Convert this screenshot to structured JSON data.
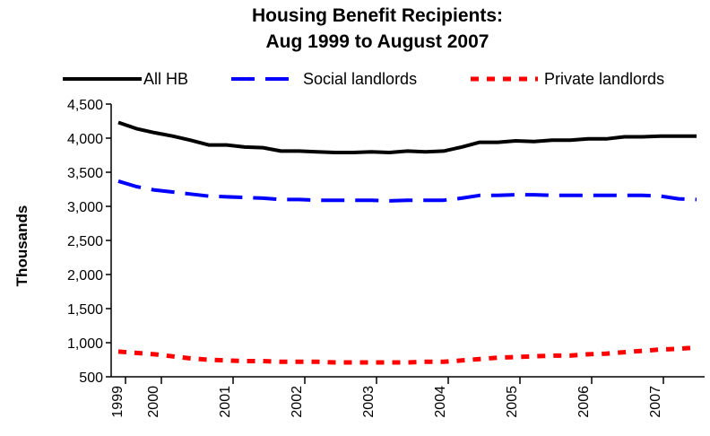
{
  "chart_data": {
    "type": "line",
    "title": [
      "Housing Benefit Recipients:",
      "Aug 1999 to August 2007"
    ],
    "ylabel": "Thousands",
    "xlabel": "",
    "ylim": [
      500,
      4500
    ],
    "yticks": [
      500,
      1000,
      1500,
      2000,
      2500,
      3000,
      3500,
      4000,
      4500
    ],
    "ytick_labels": [
      "500",
      "1,000",
      "1,500",
      "2,000",
      "2,500",
      "3,000",
      "3,500",
      "4,000",
      "4,500"
    ],
    "x_tick_labels": [
      "1999",
      "2000",
      "2001",
      "2002",
      "2003",
      "2004",
      "2005",
      "2006",
      "2007"
    ],
    "legend_position": "top",
    "grid": false,
    "series": [
      {
        "name": "All HB",
        "color": "#000000",
        "style": "solid",
        "values": [
          4230,
          4140,
          4080,
          4030,
          3970,
          3900,
          3900,
          3870,
          3860,
          3810,
          3810,
          3800,
          3790,
          3790,
          3800,
          3790,
          3810,
          3800,
          3810,
          3870,
          3940,
          3940,
          3960,
          3950,
          3970,
          3970,
          3990,
          3990,
          4020,
          4020,
          4030,
          4030,
          4030
        ]
      },
      {
        "name": "Social landlords",
        "color": "#0000ff",
        "style": "dashed",
        "values": [
          3370,
          3290,
          3240,
          3210,
          3180,
          3150,
          3140,
          3130,
          3120,
          3100,
          3100,
          3090,
          3090,
          3090,
          3090,
          3080,
          3090,
          3090,
          3090,
          3120,
          3160,
          3160,
          3170,
          3170,
          3160,
          3160,
          3160,
          3160,
          3160,
          3160,
          3150,
          3110,
          3100
        ]
      },
      {
        "name": "Private landlords",
        "color": "#ff0000",
        "style": "dotted",
        "values": [
          870,
          850,
          830,
          800,
          770,
          750,
          740,
          730,
          730,
          720,
          720,
          720,
          710,
          710,
          710,
          710,
          710,
          720,
          720,
          740,
          760,
          780,
          790,
          800,
          810,
          810,
          830,
          840,
          860,
          880,
          900,
          910,
          930
        ]
      }
    ]
  }
}
